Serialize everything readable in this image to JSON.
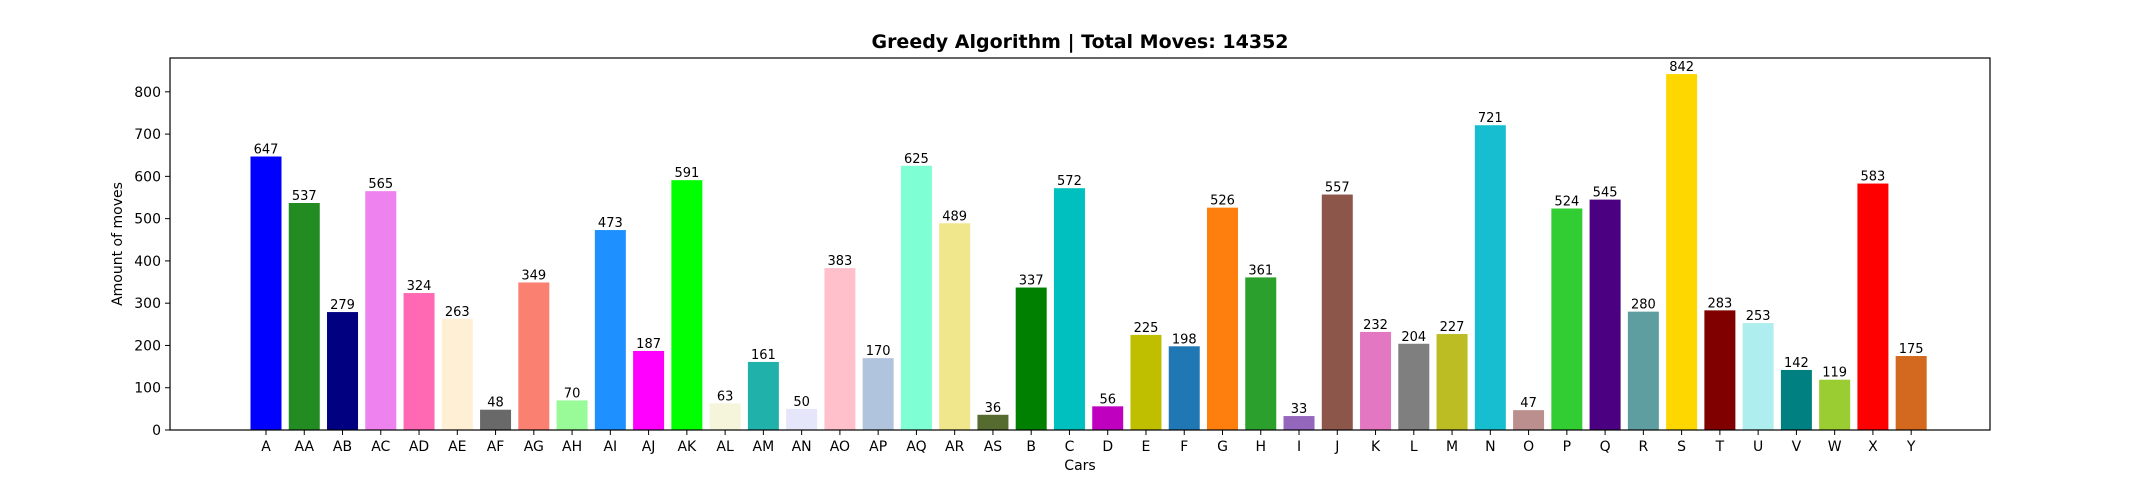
{
  "chart_data": {
    "type": "bar",
    "title": "Greedy Algorithm | Total Moves: 14352",
    "xlabel": "Cars",
    "ylabel": "Amount of moves",
    "ylim": [
      0,
      880
    ],
    "yticks": [
      0,
      100,
      200,
      300,
      400,
      500,
      600,
      700,
      800
    ],
    "grid": false,
    "legend": "none",
    "categories": [
      "A",
      "AA",
      "AB",
      "AC",
      "AD",
      "AE",
      "AF",
      "AG",
      "AH",
      "AI",
      "AJ",
      "AK",
      "AL",
      "AM",
      "AN",
      "AO",
      "AP",
      "AQ",
      "AR",
      "AS",
      "B",
      "C",
      "D",
      "E",
      "F",
      "G",
      "H",
      "I",
      "J",
      "K",
      "L",
      "M",
      "N",
      "O",
      "P",
      "Q",
      "R",
      "S",
      "T",
      "U",
      "V",
      "W",
      "X",
      "Y"
    ],
    "values": [
      647,
      537,
      279,
      565,
      324,
      263,
      48,
      349,
      70,
      473,
      187,
      591,
      63,
      161,
      50,
      383,
      170,
      625,
      489,
      36,
      337,
      572,
      56,
      225,
      198,
      526,
      361,
      33,
      557,
      232,
      204,
      227,
      721,
      47,
      524,
      545,
      280,
      842,
      283,
      253,
      142,
      119,
      583,
      175
    ],
    "colors": [
      "#0000ff",
      "#228b22",
      "#000080",
      "#ee82ee",
      "#ff69b4",
      "#ffefd5",
      "#696969",
      "#fa8072",
      "#98fb98",
      "#1e90ff",
      "#ff00ff",
      "#00ff00",
      "#f5f5dc",
      "#20b2aa",
      "#e6e6fa",
      "#ffc0cb",
      "#b0c4de",
      "#7fffd4",
      "#f0e68c",
      "#556b2f",
      "#008000",
      "#00bfbf",
      "#bf00bf",
      "#bfbf00",
      "#1f77b4",
      "#ff7f0e",
      "#2ca02c",
      "#9467bd",
      "#8c564b",
      "#e377c2",
      "#7f7f7f",
      "#bcbd22",
      "#17becf",
      "#bc8f8f",
      "#32cd32",
      "#4b0082",
      "#5f9ea0",
      "#ffd700",
      "#800000",
      "#afeeee",
      "#008080",
      "#9acd32",
      "#ff0000",
      "#d2691e"
    ]
  }
}
